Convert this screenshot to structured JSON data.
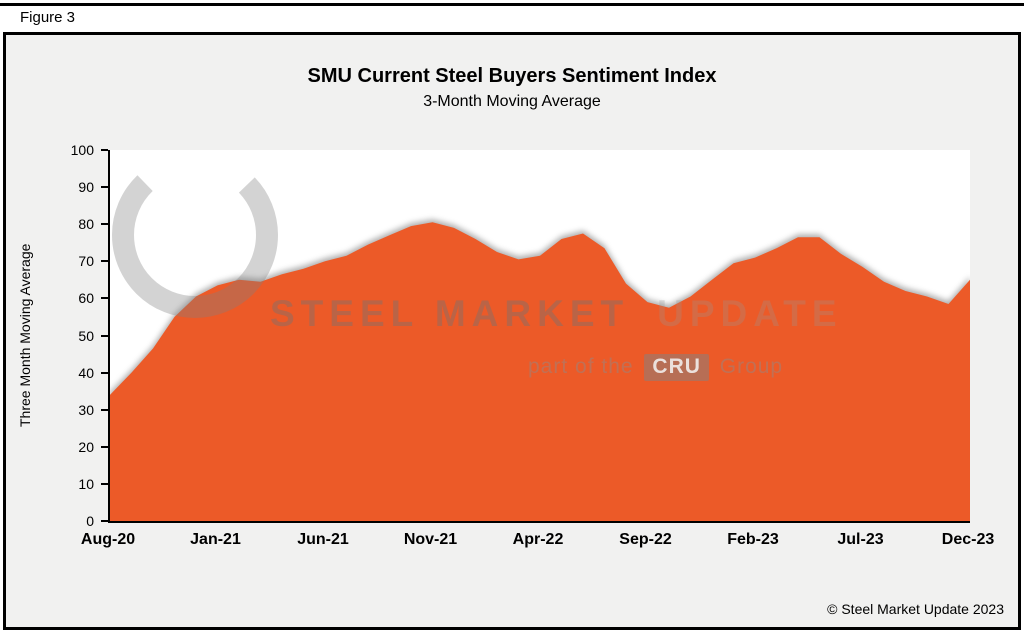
{
  "figure_label": "Figure 3",
  "copyright": "© Steel Market Update 2023",
  "watermark": {
    "brand_strong": "STEEL MARKET",
    "brand_light": "UPDATE",
    "tagline_prefix": "part of the",
    "tagline_badge": "CRU",
    "tagline_suffix": "Group"
  },
  "chart_data": {
    "type": "area",
    "title": "SMU Current Steel Buyers Sentiment Index",
    "subtitle": "3-Month Moving Average",
    "xlabel": "",
    "ylabel": "Three Month Moving Average",
    "ylim": [
      0,
      100
    ],
    "y_ticks": [
      0,
      10,
      20,
      30,
      40,
      50,
      60,
      70,
      80,
      90,
      100
    ],
    "x_tick_labels": [
      "Aug-20",
      "Jan-21",
      "Jun-21",
      "Nov-21",
      "Apr-22",
      "Sep-22",
      "Feb-23",
      "Jul-23",
      "Dec-23"
    ],
    "x_tick_indices": [
      0,
      5,
      10,
      15,
      20,
      25,
      30,
      35,
      40
    ],
    "x": [
      "Aug-20",
      "Sep-20",
      "Oct-20",
      "Nov-20",
      "Dec-20",
      "Jan-21",
      "Feb-21",
      "Mar-21",
      "Apr-21",
      "May-21",
      "Jun-21",
      "Jul-21",
      "Aug-21",
      "Sep-21",
      "Oct-21",
      "Nov-21",
      "Dec-21",
      "Jan-22",
      "Feb-22",
      "Mar-22",
      "Apr-22",
      "May-22",
      "Jun-22",
      "Jul-22",
      "Aug-22",
      "Sep-22",
      "Oct-22",
      "Nov-22",
      "Dec-22",
      "Jan-23",
      "Feb-23",
      "Mar-23",
      "Apr-23",
      "May-23",
      "Jun-23",
      "Jul-23",
      "Aug-23",
      "Sep-23",
      "Oct-23",
      "Nov-23",
      "Dec-23"
    ],
    "values": [
      34,
      40,
      46.5,
      55,
      60.5,
      63.5,
      65,
      64.5,
      66.5,
      68,
      70,
      71.5,
      74.5,
      77,
      79.5,
      80.5,
      79,
      76,
      72.5,
      70.5,
      71.5,
      76,
      77.5,
      73.5,
      64,
      59,
      57.5,
      60.5,
      65,
      69.5,
      71,
      73.5,
      76.5,
      76.5,
      72,
      68.5,
      64.5,
      62,
      60.5,
      58.5,
      65
    ],
    "fill_color": "#EC5A28",
    "grid": false,
    "legend_position": "none",
    "plot_background": "#FFFFFF",
    "figure_background": "#F1F1F0"
  }
}
